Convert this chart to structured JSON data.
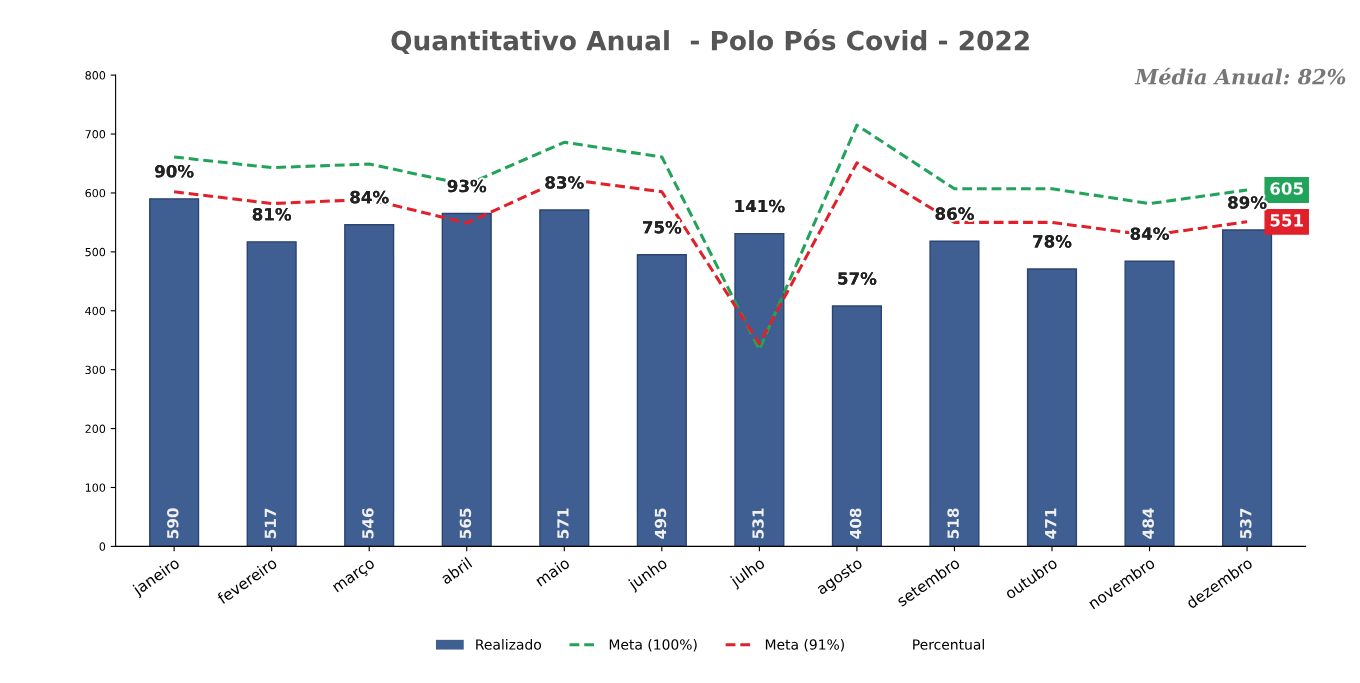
{
  "chart_data": {
    "type": "bar",
    "title": "Quantitativo Anual  - Polo Pós Covid - 2022",
    "categories": [
      "janeiro",
      "fevereiro",
      "março",
      "abril",
      "maio",
      "junho",
      "julho",
      "agosto",
      "setembro",
      "outubro",
      "novembro",
      "dezembro"
    ],
    "series": [
      {
        "name": "Realizado",
        "color": "#3f5f93",
        "values": [
          590,
          517,
          546,
          565,
          571,
          495,
          531,
          408,
          518,
          471,
          484,
          537
        ],
        "value_labels": [
          "590",
          "517",
          "546",
          "565",
          "571",
          "495",
          "531",
          "408",
          "518",
          "471",
          "484",
          "537"
        ]
      },
      {
        "name": "Meta (100%)",
        "type": "line",
        "color": "#22a35a",
        "line_style": "dashed",
        "values": [
          661,
          643,
          649,
          614,
          686,
          661,
          334,
          715,
          607,
          607,
          582,
          605
        ],
        "value_labels": [
          null,
          null,
          null,
          null,
          null,
          null,
          null,
          null,
          null,
          null,
          null,
          "605"
        ]
      },
      {
        "name": "Meta (91%)",
        "type": "line",
        "color": "#e0202a",
        "line_style": "dashed",
        "values": [
          602,
          582,
          589,
          549,
          624,
          602,
          344,
          651,
          550,
          550,
          528,
          551
        ],
        "value_labels": [
          null,
          null,
          null,
          null,
          null,
          null,
          null,
          null,
          null,
          null,
          null,
          "551"
        ]
      },
      {
        "name": "Percentual",
        "type": "line",
        "values": [
          null,
          null,
          null,
          null,
          null,
          null,
          null,
          null,
          null,
          null,
          null,
          null
        ]
      }
    ],
    "ylim": [
      0,
      800
    ],
    "yticks": [
      0,
      100,
      200,
      300,
      400,
      500,
      600,
      700,
      800
    ],
    "grid": false,
    "legend": "bottom",
    "annotations": [
      "Média Anual: 82%",
      "90%",
      "81%",
      "84%",
      "93%",
      "83%",
      "75%",
      "141%",
      "57%",
      "86%",
      "78%",
      "84%",
      "89%"
    ]
  }
}
